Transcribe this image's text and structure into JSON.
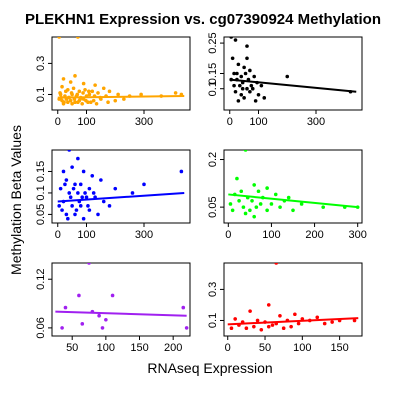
{
  "chart_data": {
    "title": "PLEKHN1 Expression vs. cg07390924 Methylation",
    "xlabel": "RNAseq Expression",
    "ylabel": "Methylation Beta Values",
    "panels": [
      {
        "type": "scatter",
        "color": "#FFA500",
        "xlim": [
          -20,
          460
        ],
        "ylim": [
          0.0,
          0.47
        ],
        "xticks": [
          0,
          100,
          300
        ],
        "yticks": [
          0.1,
          0.3
        ],
        "fit": [
          [
            0,
            0.08
          ],
          [
            440,
            0.09
          ]
        ],
        "points": [
          [
            5,
            0.47
          ],
          [
            70,
            0.47
          ],
          [
            60,
            0.22
          ],
          [
            20,
            0.2
          ],
          [
            45,
            0.18
          ],
          [
            90,
            0.17
          ],
          [
            130,
            0.16
          ],
          [
            160,
            0.14
          ],
          [
            15,
            0.15
          ],
          [
            35,
            0.13
          ],
          [
            55,
            0.14
          ],
          [
            75,
            0.12
          ],
          [
            95,
            0.13
          ],
          [
            120,
            0.12
          ],
          [
            140,
            0.11
          ],
          [
            180,
            0.12
          ],
          [
            210,
            0.1
          ],
          [
            250,
            0.09
          ],
          [
            290,
            0.1
          ],
          [
            360,
            0.09
          ],
          [
            410,
            0.11
          ],
          [
            430,
            0.1
          ],
          [
            10,
            0.1
          ],
          [
            25,
            0.09
          ],
          [
            40,
            0.08
          ],
          [
            50,
            0.1
          ],
          [
            65,
            0.09
          ],
          [
            80,
            0.08
          ],
          [
            100,
            0.09
          ],
          [
            110,
            0.1
          ],
          [
            5,
            0.07
          ],
          [
            15,
            0.06
          ],
          [
            30,
            0.07
          ],
          [
            45,
            0.06
          ],
          [
            60,
            0.05
          ],
          [
            75,
            0.06
          ],
          [
            90,
            0.07
          ],
          [
            105,
            0.05
          ],
          [
            125,
            0.06
          ],
          [
            150,
            0.07
          ],
          [
            175,
            0.05
          ],
          [
            200,
            0.06
          ],
          [
            230,
            0.07
          ],
          [
            20,
            0.04
          ],
          [
            35,
            0.05
          ],
          [
            50,
            0.04
          ],
          [
            70,
            0.05
          ],
          [
            85,
            0.04
          ],
          [
            115,
            0.05
          ],
          [
            135,
            0.04
          ],
          [
            8,
            0.11
          ],
          [
            28,
            0.12
          ],
          [
            48,
            0.11
          ],
          [
            68,
            0.1
          ],
          [
            88,
            0.11
          ],
          [
            108,
            0.12
          ],
          [
            128,
            0.09
          ],
          [
            148,
            0.08
          ],
          [
            168,
            0.09
          ],
          [
            38,
            0.08
          ],
          [
            58,
            0.07
          ],
          [
            78,
            0.07
          ],
          [
            98,
            0.06
          ],
          [
            12,
            0.08
          ],
          [
            22,
            0.05
          ]
        ]
      },
      {
        "type": "scatter",
        "color": "#000000",
        "xlim": [
          -20,
          460
        ],
        "ylim": [
          0.03,
          0.27
        ],
        "xticks": [
          0,
          100,
          300
        ],
        "yticks": [
          0.1,
          0.15,
          0.25
        ],
        "fit": [
          [
            0,
            0.13
          ],
          [
            440,
            0.09
          ]
        ],
        "points": [
          [
            5,
            0.27
          ],
          [
            20,
            0.26
          ],
          [
            60,
            0.24
          ],
          [
            10,
            0.2
          ],
          [
            30,
            0.18
          ],
          [
            50,
            0.17
          ],
          [
            70,
            0.16
          ],
          [
            15,
            0.15
          ],
          [
            40,
            0.14
          ],
          [
            55,
            0.15
          ],
          [
            85,
            0.14
          ],
          [
            25,
            0.13
          ],
          [
            45,
            0.12
          ],
          [
            65,
            0.13
          ],
          [
            95,
            0.12
          ],
          [
            110,
            0.11
          ],
          [
            35,
            0.11
          ],
          [
            60,
            0.1
          ],
          [
            80,
            0.1
          ],
          [
            20,
            0.09
          ],
          [
            40,
            0.08
          ],
          [
            70,
            0.09
          ],
          [
            100,
            0.08
          ],
          [
            50,
            0.07
          ],
          [
            30,
            0.06
          ],
          [
            90,
            0.06
          ],
          [
            120,
            0.07
          ],
          [
            15,
            0.11
          ],
          [
            45,
            0.1
          ],
          [
            75,
            0.11
          ],
          [
            5,
            0.13
          ],
          [
            25,
            0.15
          ],
          [
            200,
            0.14
          ],
          [
            420,
            0.09
          ],
          [
            60,
            0.2
          ]
        ]
      },
      {
        "type": "scatter",
        "color": "#0000FF",
        "xlim": [
          -20,
          460
        ],
        "ylim": [
          0.03,
          0.2
        ],
        "xticks": [
          0,
          100,
          300
        ],
        "yticks": [
          0.05,
          0.1,
          0.15
        ],
        "fit": [
          [
            0,
            0.08
          ],
          [
            440,
            0.1
          ]
        ],
        "points": [
          [
            40,
            0.2
          ],
          [
            70,
            0.18
          ],
          [
            50,
            0.16
          ],
          [
            20,
            0.15
          ],
          [
            90,
            0.15
          ],
          [
            120,
            0.14
          ],
          [
            150,
            0.13
          ],
          [
            30,
            0.13
          ],
          [
            60,
            0.12
          ],
          [
            80,
            0.12
          ],
          [
            110,
            0.11
          ],
          [
            200,
            0.11
          ],
          [
            260,
            0.1
          ],
          [
            10,
            0.11
          ],
          [
            40,
            0.1
          ],
          [
            70,
            0.1
          ],
          [
            100,
            0.09
          ],
          [
            130,
            0.09
          ],
          [
            160,
            0.08
          ],
          [
            20,
            0.08
          ],
          [
            50,
            0.07
          ],
          [
            80,
            0.07
          ],
          [
            110,
            0.06
          ],
          [
            30,
            0.05
          ],
          [
            60,
            0.05
          ],
          [
            90,
            0.04
          ],
          [
            140,
            0.05
          ],
          [
            15,
            0.06
          ],
          [
            45,
            0.09
          ],
          [
            75,
            0.08
          ],
          [
            105,
            0.07
          ],
          [
            35,
            0.04
          ],
          [
            65,
            0.06
          ],
          [
            95,
            0.1
          ],
          [
            25,
            0.12
          ],
          [
            55,
            0.11
          ],
          [
            85,
            0.09
          ],
          [
            430,
            0.15
          ],
          [
            300,
            0.12
          ],
          [
            180,
            0.07
          ],
          [
            5,
            0.07
          ],
          [
            125,
            0.1
          ]
        ]
      },
      {
        "type": "scatter",
        "color": "#00FF00",
        "xlim": [
          -10,
          310
        ],
        "ylim": [
          0.0,
          0.23
        ],
        "xticks": [
          0,
          100,
          200,
          300
        ],
        "yticks": [
          0.05,
          0.2
        ],
        "fit": [
          [
            0,
            0.09
          ],
          [
            300,
            0.05
          ]
        ],
        "points": [
          [
            40,
            0.23
          ],
          [
            20,
            0.14
          ],
          [
            60,
            0.12
          ],
          [
            90,
            0.11
          ],
          [
            30,
            0.1
          ],
          [
            70,
            0.1
          ],
          [
            110,
            0.09
          ],
          [
            15,
            0.09
          ],
          [
            45,
            0.08
          ],
          [
            80,
            0.08
          ],
          [
            140,
            0.08
          ],
          [
            25,
            0.07
          ],
          [
            55,
            0.07
          ],
          [
            100,
            0.06
          ],
          [
            170,
            0.06
          ],
          [
            35,
            0.05
          ],
          [
            65,
            0.05
          ],
          [
            120,
            0.05
          ],
          [
            220,
            0.05
          ],
          [
            10,
            0.04
          ],
          [
            50,
            0.04
          ],
          [
            90,
            0.04
          ],
          [
            150,
            0.04
          ],
          [
            270,
            0.05
          ],
          [
            300,
            0.05
          ],
          [
            5,
            0.06
          ],
          [
            75,
            0.06
          ],
          [
            130,
            0.07
          ],
          [
            40,
            0.03
          ],
          [
            60,
            0.02
          ]
        ]
      },
      {
        "type": "scatter",
        "color": "#A020F0",
        "xlim": [
          20,
          225
        ],
        "ylim": [
          0.05,
          0.14
        ],
        "xticks": [
          50,
          100,
          150,
          200
        ],
        "yticks": [
          0.06,
          0.12
        ],
        "fit": [
          [
            25,
            0.08
          ],
          [
            220,
            0.075
          ]
        ],
        "points": [
          [
            75,
            0.14
          ],
          [
            60,
            0.1
          ],
          [
            110,
            0.1
          ],
          [
            215,
            0.085
          ],
          [
            80,
            0.08
          ],
          [
            40,
            0.085
          ],
          [
            90,
            0.075
          ],
          [
            100,
            0.07
          ],
          [
            65,
            0.065
          ],
          [
            35,
            0.06
          ],
          [
            220,
            0.06
          ],
          [
            95,
            0.06
          ]
        ]
      },
      {
        "type": "scatter",
        "color": "#FF0000",
        "xlim": [
          -5,
          180
        ],
        "ylim": [
          0.0,
          0.47
        ],
        "xticks": [
          0,
          50,
          100,
          150
        ],
        "yticks": [
          0.1,
          0.3
        ],
        "fit": [
          [
            0,
            0.075
          ],
          [
            175,
            0.115
          ]
        ],
        "points": [
          [
            65,
            0.47
          ],
          [
            55,
            0.2
          ],
          [
            30,
            0.16
          ],
          [
            90,
            0.14
          ],
          [
            70,
            0.13
          ],
          [
            120,
            0.12
          ],
          [
            10,
            0.11
          ],
          [
            40,
            0.1
          ],
          [
            80,
            0.1
          ],
          [
            110,
            0.1
          ],
          [
            20,
            0.09
          ],
          [
            50,
            0.09
          ],
          [
            95,
            0.08
          ],
          [
            130,
            0.08
          ],
          [
            15,
            0.07
          ],
          [
            35,
            0.06
          ],
          [
            60,
            0.07
          ],
          [
            85,
            0.06
          ],
          [
            25,
            0.05
          ],
          [
            45,
            0.04
          ],
          [
            75,
            0.05
          ],
          [
            5,
            0.05
          ],
          [
            100,
            0.11
          ],
          [
            150,
            0.1
          ],
          [
            170,
            0.1
          ],
          [
            140,
            0.09
          ],
          [
            65,
            0.08
          ],
          [
            55,
            0.06
          ]
        ]
      }
    ]
  }
}
